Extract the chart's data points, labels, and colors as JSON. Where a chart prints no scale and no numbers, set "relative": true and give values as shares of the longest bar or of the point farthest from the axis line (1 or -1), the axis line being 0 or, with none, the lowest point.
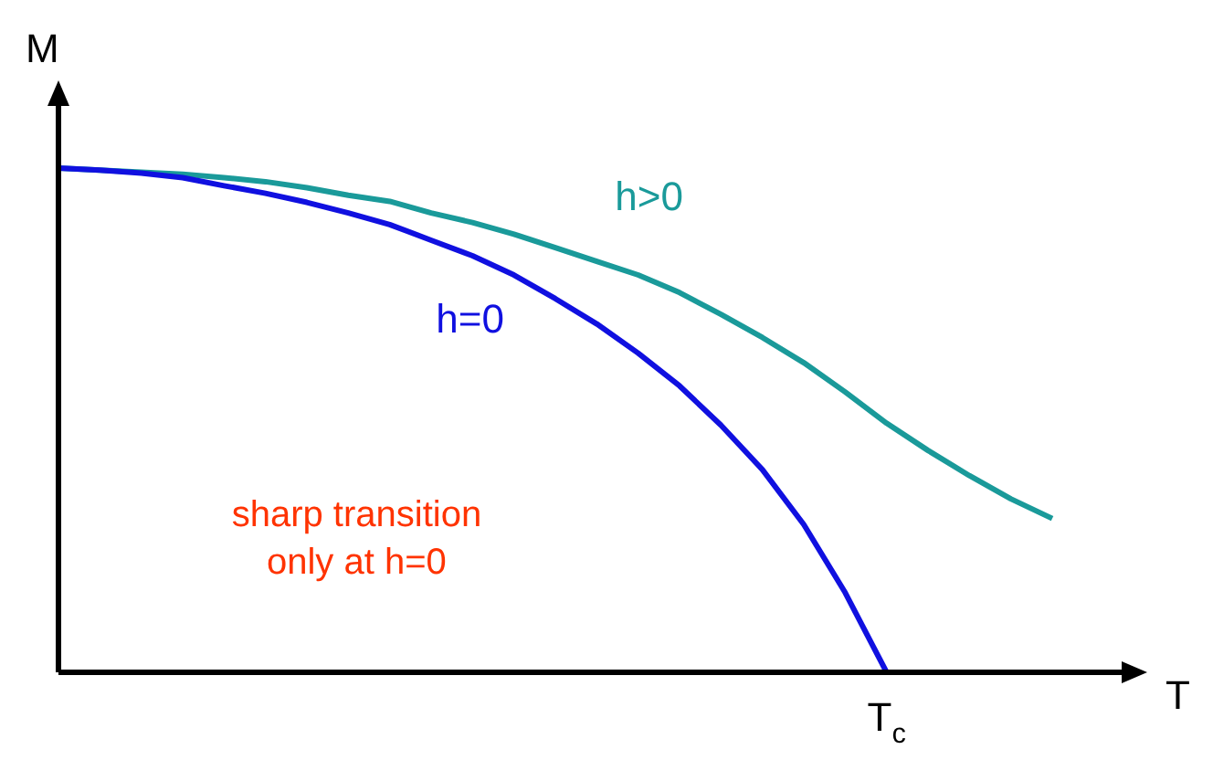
{
  "chart_data": {
    "type": "line",
    "relative": true,
    "xlabel": "T",
    "ylabel": "M",
    "marker": "none",
    "grid": false,
    "legend": false,
    "categories": [
      null,
      null,
      null,
      null,
      null,
      null,
      null,
      null,
      null,
      null,
      null,
      null,
      null,
      null,
      null,
      null,
      null,
      null,
      null,
      null,
      null,
      null,
      null,
      null,
      null
    ],
    "annotations": [
      "sharp transition\nonly at h=0",
      "T$_{c}$"
    ],
    "series": [
      {
        "name": "h=0",
        "color": "#1010e0",
        "values": [
          1,
          0.996,
          0.99,
          0.981,
          0.965,
          0.95,
          0.932,
          0.911,
          0.888,
          0.857,
          0.826,
          0.788,
          0.741,
          0.691,
          0.633,
          0.568,
          0.49,
          0.402,
          0.293,
          0.158,
          0,
          null,
          null,
          null,
          null
        ]
      },
      {
        "name": "h>0",
        "color": "#1a9a9a",
        "values": [
          1,
          0.996,
          0.992,
          0.988,
          0.981,
          0.973,
          0.961,
          0.946,
          0.934,
          0.911,
          0.892,
          0.869,
          0.842,
          0.815,
          0.788,
          0.753,
          0.71,
          0.664,
          0.614,
          0.556,
          0.494,
          0.44,
          0.39,
          0.344,
          0.305
        ]
      }
    ]
  }
}
